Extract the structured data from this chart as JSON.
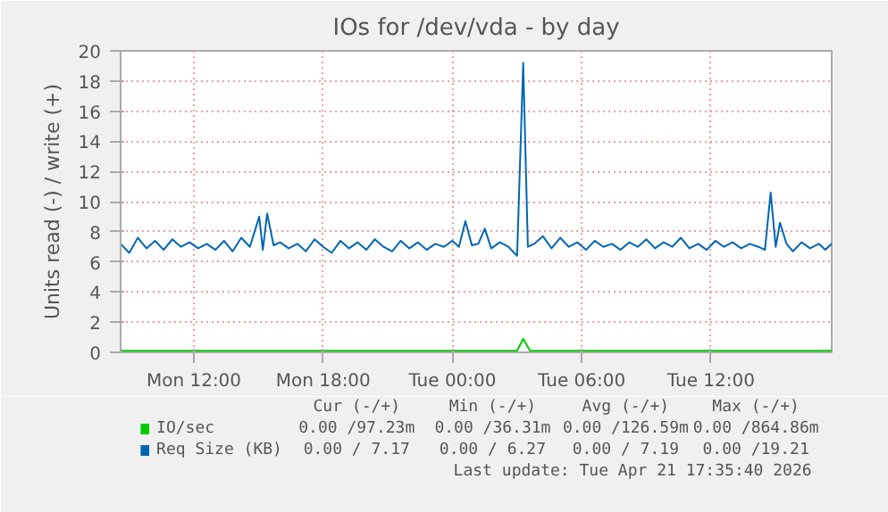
{
  "chart_data": {
    "type": "line",
    "title": "IOs for /dev/vda - by day",
    "ylabel": "Units read (-) / write (+)",
    "xlim": [
      "2026-04-20T08:36",
      "2026-04-21T17:36"
    ],
    "xticks": [
      {
        "value": "2026-04-20T12:00",
        "label": "Mon 12:00"
      },
      {
        "value": "2026-04-20T18:00",
        "label": "Mon 18:00"
      },
      {
        "value": "2026-04-21T00:00",
        "label": "Tue 00:00"
      },
      {
        "value": "2026-04-21T06:00",
        "label": "Tue 06:00"
      },
      {
        "value": "2026-04-21T12:00",
        "label": "Tue 12:00"
      }
    ],
    "ylim": [
      0,
      20
    ],
    "yticks": [
      0,
      2,
      4,
      6,
      8,
      10,
      12,
      14,
      16,
      18,
      20
    ],
    "grid": true,
    "legend": "bottom",
    "series": [
      {
        "name": "IO/sec",
        "color": "#00cc00",
        "x": [
          "2026-04-20T08:36",
          "2026-04-20T12:00",
          "2026-04-20T16:00",
          "2026-04-20T20:00",
          "2026-04-21T00:00",
          "2026-04-21T02:00",
          "2026-04-21T03:00",
          "2026-04-21T03:17",
          "2026-04-21T03:36",
          "2026-04-21T06:00",
          "2026-04-21T10:00",
          "2026-04-21T14:00",
          "2026-04-21T17:36"
        ],
        "values": [
          0.1,
          0.1,
          0.1,
          0.1,
          0.1,
          0.1,
          0.1,
          0.9,
          0.1,
          0.1,
          0.1,
          0.1,
          0.1
        ]
      },
      {
        "name": "Req Size (KB)",
        "color": "#0066b3",
        "x": [
          "2026-04-20T08:36",
          "2026-04-20T09:00",
          "2026-04-20T09:24",
          "2026-04-20T09:48",
          "2026-04-20T10:12",
          "2026-04-20T10:36",
          "2026-04-20T11:00",
          "2026-04-20T11:24",
          "2026-04-20T11:48",
          "2026-04-20T12:12",
          "2026-04-20T12:36",
          "2026-04-20T13:00",
          "2026-04-20T13:24",
          "2026-04-20T13:48",
          "2026-04-20T14:12",
          "2026-04-20T14:36",
          "2026-04-20T15:02",
          "2026-04-20T15:12",
          "2026-04-20T15:24",
          "2026-04-20T15:42",
          "2026-04-20T16:00",
          "2026-04-20T16:24",
          "2026-04-20T16:48",
          "2026-04-20T17:12",
          "2026-04-20T17:36",
          "2026-04-20T18:00",
          "2026-04-20T18:24",
          "2026-04-20T18:48",
          "2026-04-20T19:12",
          "2026-04-20T19:36",
          "2026-04-20T20:00",
          "2026-04-20T20:24",
          "2026-04-20T20:48",
          "2026-04-20T21:12",
          "2026-04-20T21:36",
          "2026-04-20T22:00",
          "2026-04-20T22:24",
          "2026-04-20T22:48",
          "2026-04-20T23:12",
          "2026-04-20T23:36",
          "2026-04-21T00:00",
          "2026-04-21T00:18",
          "2026-04-21T00:36",
          "2026-04-21T00:54",
          "2026-04-21T01:12",
          "2026-04-21T01:30",
          "2026-04-21T01:48",
          "2026-04-21T02:12",
          "2026-04-21T02:36",
          "2026-04-21T03:00",
          "2026-04-21T03:17",
          "2026-04-21T03:30",
          "2026-04-21T03:48",
          "2026-04-21T04:12",
          "2026-04-21T04:36",
          "2026-04-21T05:00",
          "2026-04-21T05:24",
          "2026-04-21T05:48",
          "2026-04-21T06:12",
          "2026-04-21T06:36",
          "2026-04-21T07:00",
          "2026-04-21T07:24",
          "2026-04-21T07:48",
          "2026-04-21T08:12",
          "2026-04-21T08:36",
          "2026-04-21T09:00",
          "2026-04-21T09:24",
          "2026-04-21T09:48",
          "2026-04-21T10:12",
          "2026-04-21T10:36",
          "2026-04-21T11:00",
          "2026-04-21T11:24",
          "2026-04-21T11:48",
          "2026-04-21T12:12",
          "2026-04-21T12:36",
          "2026-04-21T13:00",
          "2026-04-21T13:24",
          "2026-04-21T13:48",
          "2026-04-21T14:12",
          "2026-04-21T14:30",
          "2026-04-21T14:46",
          "2026-04-21T15:00",
          "2026-04-21T15:12",
          "2026-04-21T15:30",
          "2026-04-21T15:48",
          "2026-04-21T16:12",
          "2026-04-21T16:36",
          "2026-04-21T17:00",
          "2026-04-21T17:18",
          "2026-04-21T17:36"
        ],
        "values": [
          7.2,
          6.6,
          7.6,
          6.9,
          7.4,
          6.8,
          7.5,
          7.0,
          7.3,
          6.9,
          7.2,
          6.8,
          7.4,
          6.7,
          7.6,
          7.0,
          9.0,
          6.8,
          9.2,
          7.1,
          7.3,
          6.9,
          7.2,
          6.7,
          7.5,
          7.0,
          6.6,
          7.4,
          6.9,
          7.3,
          6.8,
          7.5,
          7.0,
          6.7,
          7.4,
          6.9,
          7.3,
          6.8,
          7.2,
          7.0,
          7.4,
          7.0,
          8.7,
          7.1,
          7.2,
          8.2,
          6.9,
          7.3,
          7.0,
          6.4,
          19.2,
          7.0,
          7.2,
          7.7,
          6.9,
          7.6,
          7.0,
          7.3,
          6.8,
          7.4,
          7.0,
          7.2,
          6.8,
          7.3,
          7.0,
          7.5,
          6.9,
          7.3,
          7.0,
          7.6,
          6.9,
          7.2,
          6.8,
          7.4,
          7.0,
          7.3,
          6.9,
          7.2,
          7.0,
          6.8,
          10.6,
          7.0,
          8.6,
          7.2,
          6.7,
          7.3,
          6.9,
          7.2,
          6.8,
          7.2
        ]
      }
    ],
    "annotations": [
      "Cur (-/+)",
      "Min (-/+)",
      "Avg (-/+)",
      "Max (-/+)",
      "0.00 /97.23m",
      "0.00 /36.31m",
      "0.00 /126.59m",
      "0.00 /864.86m",
      "0.00 / 7.17",
      "0.00 / 6.27",
      "0.00 / 7.19",
      "0.00 /19.21",
      "Last update: Tue Apr 21 17:35:40 2026"
    ]
  }
}
